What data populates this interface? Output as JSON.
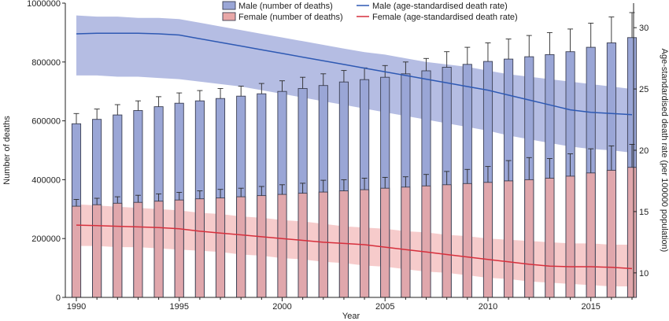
{
  "chart_data": {
    "type": "bar",
    "x": [
      1990,
      1991,
      1992,
      1993,
      1994,
      1995,
      1996,
      1997,
      1998,
      1999,
      2000,
      2001,
      2002,
      2003,
      2004,
      2005,
      2006,
      2007,
      2008,
      2009,
      2010,
      2011,
      2012,
      2013,
      2014,
      2015,
      2016,
      2017
    ],
    "xticks": [
      1990,
      1995,
      2000,
      2005,
      2010,
      2015
    ],
    "xlabel": "Year",
    "ylabel_left": "Number of deaths",
    "ylabel_right": "Age-standardised death rate (per 100000 population)",
    "ylim_left": [
      0,
      1000000
    ],
    "yticks_left": [
      0,
      200000,
      400000,
      600000,
      800000,
      1000000
    ],
    "ylim_right": [
      8,
      32
    ],
    "yticks_right": [
      10,
      15,
      20,
      25,
      30
    ],
    "legend_position": "top",
    "series": [
      {
        "name": "Male (number of deaths)",
        "kind": "bar",
        "axis": "left",
        "color": "#9aa6d6",
        "edge": "#3b3f52",
        "values": [
          590000,
          605000,
          620000,
          635000,
          648000,
          660000,
          668000,
          676000,
          684000,
          692000,
          700000,
          710000,
          720000,
          732000,
          740000,
          748000,
          760000,
          770000,
          782000,
          792000,
          802000,
          810000,
          818000,
          825000,
          835000,
          850000,
          865000,
          883000
        ],
        "err_upper": [
          625000,
          640000,
          655000,
          668000,
          682000,
          695000,
          703000,
          710000,
          718000,
          727000,
          736000,
          748000,
          760000,
          771000,
          780000,
          788000,
          800000,
          812000,
          835000,
          850000,
          865000,
          878000,
          890000,
          900000,
          912000,
          932000,
          953000,
          968000
        ]
      },
      {
        "name": "Female (number of deaths)",
        "kind": "bar",
        "axis": "left",
        "color": "#e8a7a7",
        "edge": "#3b3f52",
        "values": [
          310000,
          315000,
          320000,
          323000,
          327000,
          331000,
          335000,
          338000,
          342000,
          346000,
          350000,
          354000,
          358000,
          362000,
          366000,
          371000,
          375000,
          379000,
          383000,
          387000,
          391000,
          396000,
          400000,
          405000,
          412000,
          423000,
          432000,
          442000
        ],
        "err_upper": [
          333000,
          337000,
          342000,
          347000,
          352000,
          357000,
          362000,
          367000,
          371000,
          377000,
          383000,
          388000,
          398000,
          400000,
          405000,
          408000,
          410000,
          418000,
          428000,
          435000,
          445000,
          465000,
          475000,
          472000,
          488000,
          505000,
          515000,
          520000
        ]
      },
      {
        "name": "Male (age-standardised death rate)",
        "kind": "line",
        "axis": "right",
        "color": "#2e59b3",
        "band_color": "#a8b2de",
        "values": [
          29.5,
          29.55,
          29.55,
          29.55,
          29.5,
          29.4,
          29.1,
          28.8,
          28.5,
          28.2,
          27.9,
          27.6,
          27.3,
          27.0,
          26.7,
          26.4,
          26.1,
          25.8,
          25.5,
          25.2,
          24.9,
          24.5,
          24.1,
          23.7,
          23.3,
          23.1,
          23.0,
          22.9
        ],
        "band_lower": [
          26.1,
          26.1,
          26.0,
          26.0,
          25.9,
          25.8,
          25.6,
          25.4,
          25.2,
          24.9,
          24.6,
          24.3,
          24.0,
          23.7,
          23.4,
          23.1,
          22.8,
          22.5,
          22.2,
          21.9,
          21.6,
          21.2,
          20.9,
          20.6,
          20.3,
          20.1,
          20.0,
          19.8
        ],
        "band_upper": [
          31.0,
          30.9,
          30.9,
          30.8,
          30.8,
          30.7,
          30.4,
          30.1,
          29.8,
          29.5,
          29.2,
          28.9,
          28.6,
          28.3,
          28.0,
          27.8,
          27.5,
          27.2,
          27.0,
          26.8,
          26.5,
          26.2,
          26.0,
          25.8,
          25.6,
          25.4,
          25.2,
          25.0
        ]
      },
      {
        "name": "Female (age-standardised death rate)",
        "kind": "line",
        "axis": "right",
        "color": "#d62f3c",
        "band_color": "#f3b9b9",
        "values": [
          13.9,
          13.85,
          13.8,
          13.75,
          13.7,
          13.6,
          13.4,
          13.25,
          13.1,
          12.95,
          12.8,
          12.65,
          12.5,
          12.4,
          12.3,
          12.1,
          11.9,
          11.7,
          11.5,
          11.3,
          11.1,
          10.9,
          10.7,
          10.55,
          10.5,
          10.5,
          10.45,
          10.35
        ],
        "band_lower": [
          12.2,
          12.2,
          12.1,
          12.1,
          12.0,
          11.9,
          11.8,
          11.7,
          11.5,
          11.4,
          11.2,
          11.1,
          10.9,
          10.8,
          10.6,
          10.5,
          10.3,
          10.1,
          10.0,
          9.8,
          9.6,
          9.5,
          9.3,
          9.2,
          9.1,
          9.0,
          8.9,
          8.9
        ],
        "band_upper": [
          15.6,
          15.5,
          15.4,
          15.3,
          15.2,
          15.1,
          14.9,
          14.8,
          14.6,
          14.5,
          14.3,
          14.2,
          14.0,
          13.8,
          13.7,
          13.6,
          13.4,
          13.3,
          13.1,
          13.0,
          12.8,
          12.7,
          12.6,
          12.5,
          12.4,
          12.4,
          12.3,
          12.3
        ]
      }
    ]
  }
}
